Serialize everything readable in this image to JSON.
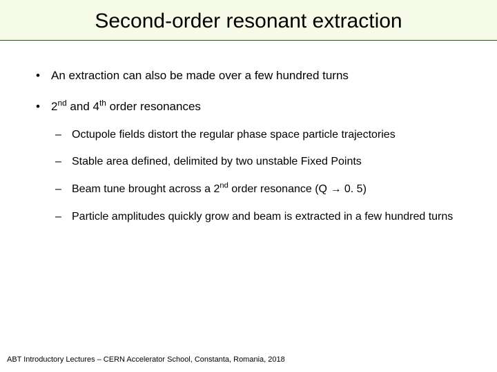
{
  "title_band_bg": "#f6fbe7",
  "title_border_color": "#1a5c1a",
  "title": "Second-order resonant extraction",
  "bullets": [
    {
      "html": "An extraction can also be made over a few hundred turns"
    },
    {
      "html": "2<span class=\"sup\">nd</span> and 4<span class=\"sup\">th</span> order resonances",
      "sub": [
        {
          "html": "Octupole fields distort the regular phase space particle trajectories"
        },
        {
          "html": "Stable area defined, delimited by two unstable Fixed Points"
        },
        {
          "html": "Beam tune brought across a 2<span class=\"sup\">nd</span> order resonance (Q → 0. 5)"
        },
        {
          "html": "Particle amplitudes quickly grow and beam is extracted in a few hundred turns"
        }
      ]
    }
  ],
  "footer": "ABT Introductory Lectures – CERN Accelerator School, Constanta, Romania, 2018"
}
